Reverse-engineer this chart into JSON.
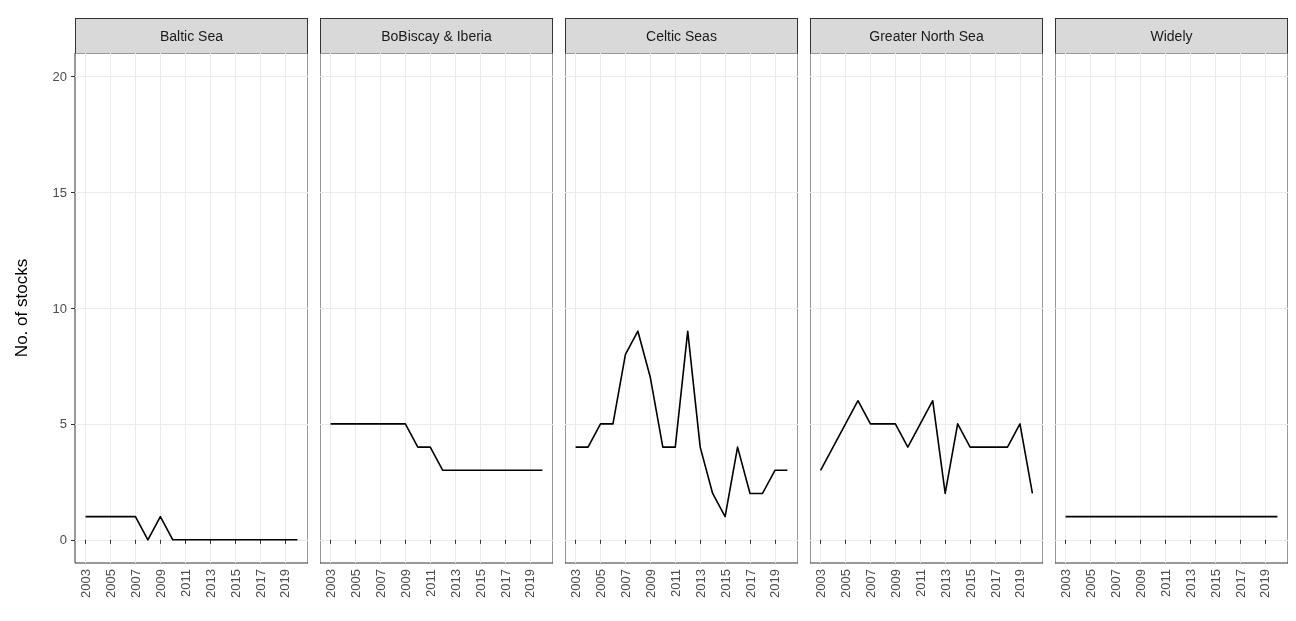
{
  "chart_data": [
    {
      "type": "line",
      "title": "Baltic Sea",
      "ylabel": "No. of stocks",
      "x": [
        2003,
        2004,
        2005,
        2006,
        2007,
        2008,
        2009,
        2010,
        2011,
        2012,
        2013,
        2014,
        2015,
        2016,
        2017,
        2018,
        2019,
        2020
      ],
      "values": [
        1,
        1,
        1,
        1,
        1,
        0,
        1,
        0,
        0,
        0,
        0,
        0,
        0,
        0,
        0,
        0,
        0,
        0
      ],
      "color": "#000000",
      "marker": "none",
      "xlim": [
        2002.15,
        2020.85
      ],
      "xticks": [
        2003,
        2005,
        2007,
        2009,
        2011,
        2013,
        2015,
        2017,
        2019
      ],
      "ylim": [
        -1,
        21
      ],
      "yticks": [
        0,
        5,
        10,
        15,
        20
      ],
      "grid": true
    },
    {
      "type": "line",
      "title": "BoBiscay & Iberia",
      "x": [
        2003,
        2004,
        2005,
        2006,
        2007,
        2008,
        2009,
        2010,
        2011,
        2012,
        2013,
        2014,
        2015,
        2016,
        2017,
        2018,
        2019,
        2020
      ],
      "values": [
        5,
        5,
        5,
        5,
        5,
        5,
        5,
        4,
        4,
        3,
        3,
        3,
        3,
        3,
        3,
        3,
        3,
        3
      ],
      "color": "#000000",
      "marker": "none",
      "xlim": [
        2002.15,
        2020.85
      ],
      "xticks": [
        2003,
        2005,
        2007,
        2009,
        2011,
        2013,
        2015,
        2017,
        2019
      ],
      "ylim": [
        -1,
        21
      ],
      "yticks": [
        0,
        5,
        10,
        15,
        20
      ],
      "grid": true,
      "tick_labels": "x"
    },
    {
      "type": "line",
      "title": "Celtic Seas",
      "x": [
        2003,
        2004,
        2005,
        2006,
        2007,
        2008,
        2009,
        2010,
        2011,
        2012,
        2013,
        2014,
        2015,
        2016,
        2017,
        2018,
        2019,
        2020
      ],
      "values": [
        4,
        4,
        5,
        5,
        8,
        9,
        7,
        4,
        4,
        9,
        4,
        2,
        1,
        4,
        2,
        2,
        3,
        3
      ],
      "color": "#000000",
      "marker": "none",
      "xlim": [
        2002.15,
        2020.85
      ],
      "xticks": [
        2003,
        2005,
        2007,
        2009,
        2011,
        2013,
        2015,
        2017,
        2019
      ],
      "ylim": [
        -1,
        21
      ],
      "yticks": [
        0,
        5,
        10,
        15,
        20
      ],
      "grid": true,
      "tick_labels": "x"
    },
    {
      "type": "line",
      "title": "Greater North Sea",
      "x": [
        2003,
        2004,
        2005,
        2006,
        2007,
        2008,
        2009,
        2010,
        2011,
        2012,
        2013,
        2014,
        2015,
        2016,
        2017,
        2018,
        2019,
        2020
      ],
      "values": [
        3,
        4,
        5,
        6,
        5,
        5,
        5,
        4,
        5,
        6,
        2,
        5,
        4,
        4,
        4,
        4,
        5,
        2
      ],
      "color": "#000000",
      "marker": "none",
      "xlim": [
        2002.15,
        2020.85
      ],
      "xticks": [
        2003,
        2005,
        2007,
        2009,
        2011,
        2013,
        2015,
        2017,
        2019
      ],
      "ylim": [
        -1,
        21
      ],
      "yticks": [
        0,
        5,
        10,
        15,
        20
      ],
      "grid": true,
      "tick_labels": "x"
    },
    {
      "type": "line",
      "title": "Widely",
      "x": [
        2003,
        2004,
        2005,
        2006,
        2007,
        2008,
        2009,
        2010,
        2011,
        2012,
        2013,
        2014,
        2015,
        2016,
        2017,
        2018,
        2019,
        2020
      ],
      "values": [
        1,
        1,
        1,
        1,
        1,
        1,
        1,
        1,
        1,
        1,
        1,
        1,
        1,
        1,
        1,
        1,
        1,
        1
      ],
      "color": "#000000",
      "marker": "none",
      "xlim": [
        2002.15,
        2020.85
      ],
      "xticks": [
        2003,
        2005,
        2007,
        2009,
        2011,
        2013,
        2015,
        2017,
        2019
      ],
      "ylim": [
        -1,
        21
      ],
      "yticks": [
        0,
        5,
        10,
        15,
        20
      ],
      "grid": true,
      "tick_labels": "x"
    }
  ]
}
